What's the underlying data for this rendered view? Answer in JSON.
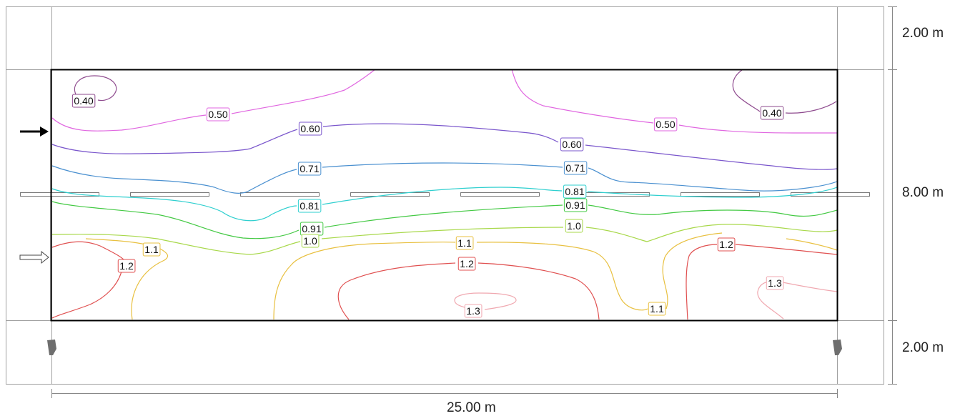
{
  "dimensions": {
    "top_band": "2.00 m",
    "field_depth": "8.00 m",
    "bottom_band": "2.00 m",
    "width": "25.00 m"
  },
  "colors": {
    "c040": "#8e4a8e",
    "c050": "#e066e0",
    "c060": "#7a56cc",
    "c071": "#4a90d0",
    "c081": "#2ecfcf",
    "c091": "#43c943",
    "c100": "#a8d84a",
    "c110": "#e8c040",
    "c120": "#e05050",
    "c130": "#f0a8b0"
  },
  "contour_labels": [
    {
      "id": "l040a",
      "text": "0.40",
      "color": "#8e4a8e"
    },
    {
      "id": "l040b",
      "text": "0.40",
      "color": "#8e4a8e"
    },
    {
      "id": "l050a",
      "text": "0.50",
      "color": "#e066e0"
    },
    {
      "id": "l050b",
      "text": "0.50",
      "color": "#e066e0"
    },
    {
      "id": "l060a",
      "text": "0.60",
      "color": "#7a56cc"
    },
    {
      "id": "l060b",
      "text": "0.60",
      "color": "#7a56cc"
    },
    {
      "id": "l071a",
      "text": "0.71",
      "color": "#4a90d0"
    },
    {
      "id": "l071b",
      "text": "0.71",
      "color": "#4a90d0"
    },
    {
      "id": "l081a",
      "text": "0.81",
      "color": "#2ecfcf"
    },
    {
      "id": "l081b",
      "text": "0.81",
      "color": "#2ecfcf"
    },
    {
      "id": "l091a",
      "text": "0.91",
      "color": "#43c943"
    },
    {
      "id": "l091b",
      "text": "0.91",
      "color": "#43c943"
    },
    {
      "id": "l100a",
      "text": "1.0",
      "color": "#a8d84a"
    },
    {
      "id": "l100b",
      "text": "1.0",
      "color": "#a8d84a"
    },
    {
      "id": "l110a",
      "text": "1.1",
      "color": "#e8c040"
    },
    {
      "id": "l110b",
      "text": "1.1",
      "color": "#e8c040"
    },
    {
      "id": "l110c",
      "text": "1.1",
      "color": "#e8c040"
    },
    {
      "id": "l120a",
      "text": "1.2",
      "color": "#e05050"
    },
    {
      "id": "l120b",
      "text": "1.2",
      "color": "#e05050"
    },
    {
      "id": "l120c",
      "text": "1.2",
      "color": "#e05050"
    },
    {
      "id": "l130a",
      "text": "1.3",
      "color": "#f0a8b0"
    },
    {
      "id": "l130b",
      "text": "1.3",
      "color": "#f0a8b0"
    }
  ]
}
